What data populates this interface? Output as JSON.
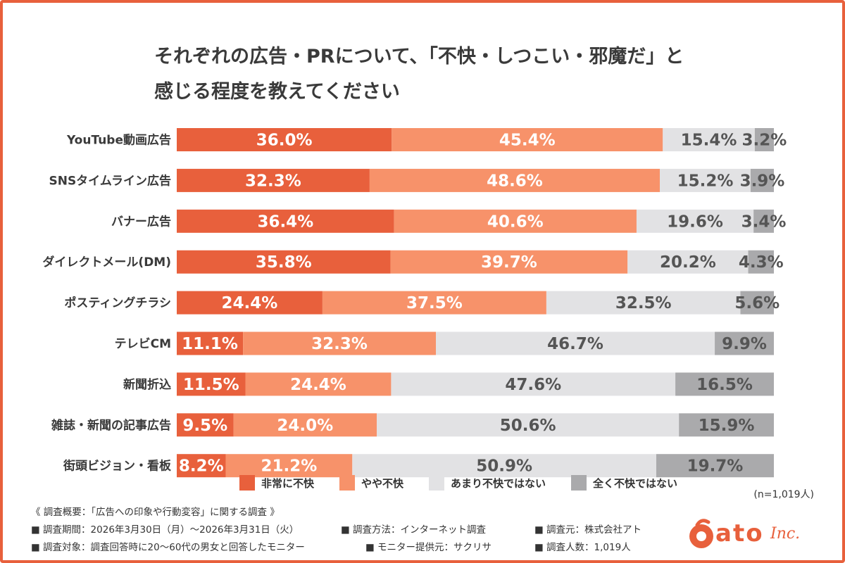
{
  "title_lines": [
    "それぞれの広告・PRについて、「不快・しつこい・邪魔だ」と",
    "感じる程度を教えてください"
  ],
  "chart_data": {
    "type": "bar",
    "orientation": "horizontal",
    "stacked": "percent",
    "categories": [
      "YouTube動画広告",
      "SNSタイムライン広告",
      "バナー広告",
      "ダイレクトメール(DM)",
      "ポスティングチラシ",
      "テレビCM",
      "新聞折込",
      "雑誌・新聞の記事広告",
      "街頭ビジョン・看板"
    ],
    "series": [
      {
        "name": "非常に不快",
        "color": "#e8603c",
        "text_color": "#ffffff",
        "values": [
          36.0,
          32.3,
          36.4,
          35.8,
          24.4,
          11.1,
          11.5,
          9.5,
          8.2
        ]
      },
      {
        "name": "やや不快",
        "color": "#f7926a",
        "text_color": "#ffffff",
        "values": [
          45.4,
          48.6,
          40.6,
          39.7,
          37.5,
          32.3,
          24.4,
          24.0,
          21.2
        ]
      },
      {
        "name": "あまり不快ではない",
        "color": "#e2e2e4",
        "text_color": "#555555",
        "values": [
          15.4,
          15.2,
          19.6,
          20.2,
          32.5,
          46.7,
          47.6,
          50.6,
          50.9
        ]
      },
      {
        "name": "全く不快ではない",
        "color": "#aaaaac",
        "text_color": "#555555",
        "values": [
          3.2,
          3.9,
          3.4,
          4.3,
          5.6,
          9.9,
          16.5,
          15.9,
          19.7
        ]
      }
    ],
    "labels": [
      [
        "36.0%",
        "45.4%",
        "15.4%",
        "3.2%"
      ],
      [
        "32.3%",
        "48.6%",
        "15.2%",
        "3.9%"
      ],
      [
        "36.4%",
        "40.6%",
        "19.6%",
        "3.4%"
      ],
      [
        "35.8%",
        "39.7%",
        "20.2%",
        "4.3%"
      ],
      [
        "24.4%",
        "37.5%",
        "32.5%",
        "5.6%"
      ],
      [
        "11.1%",
        "32.3%",
        "46.7%",
        "9.9%"
      ],
      [
        "11.5%",
        "24.4%",
        "47.6%",
        "16.5%"
      ],
      [
        "9.5%",
        "24.0%",
        "50.6%",
        "15.9%"
      ],
      [
        "8.2%",
        "21.2%",
        "50.9%",
        "19.7%"
      ]
    ],
    "xlim": [
      0,
      100
    ],
    "grid": false,
    "legend": "bottom"
  },
  "sample_size": "(n=1,019人)",
  "notes": {
    "header": "《 調査概要：「広告への印象や行動変容」に関する調査 》",
    "row1": [
      "■ 調査期間：2026年3月30日（月）〜2026年3月31日（火）",
      "■ 調査方法：インターネット調査",
      "■ 調査元：株式会社アト"
    ],
    "row2": [
      "■ 調査対象：調査回答時に20〜60代の男女と回答したモニター",
      "■ モニター提供元：サクリサ",
      "■ 調査人数：1,019人"
    ]
  },
  "logo": {
    "name": "ato",
    "suffix": "Inc.",
    "color": "#e8603c"
  },
  "frame_color": "#e8603c"
}
